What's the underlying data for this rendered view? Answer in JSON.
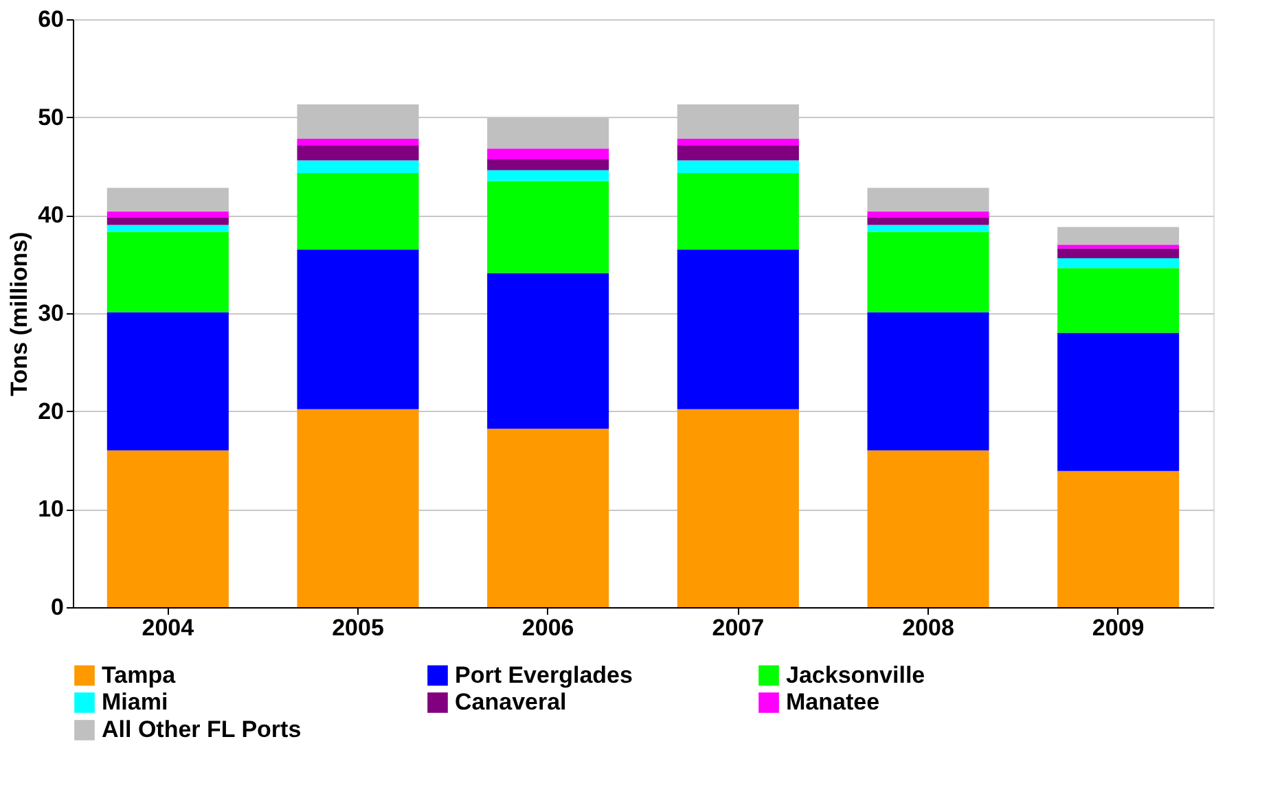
{
  "chart_data": {
    "type": "bar",
    "stacked": true,
    "ylabel": "Tons (millions)",
    "categories": [
      "2004",
      "2005",
      "2006",
      "2007",
      "2008",
      "2009"
    ],
    "ylim": [
      0,
      60
    ],
    "yticks": [
      0,
      10,
      20,
      30,
      40,
      50,
      60
    ],
    "grid": "y",
    "legend": "bottom",
    "series": [
      {
        "name": "Tampa",
        "color": "#ff9900",
        "values": [
          16.0,
          20.2,
          18.2,
          20.2,
          16.0,
          13.9
        ]
      },
      {
        "name": "Port Everglades",
        "color": "#0000ff",
        "values": [
          14.1,
          16.3,
          15.9,
          16.3,
          14.1,
          14.1
        ]
      },
      {
        "name": "Jacksonville",
        "color": "#00ff00",
        "values": [
          8.2,
          7.8,
          9.4,
          7.8,
          8.2,
          6.6
        ]
      },
      {
        "name": "Miami",
        "color": "#00ffff",
        "values": [
          0.7,
          1.3,
          1.1,
          1.3,
          0.7,
          1.0
        ]
      },
      {
        "name": "Canaveral",
        "color": "#800080",
        "values": [
          0.8,
          1.5,
          1.1,
          1.5,
          0.8,
          1.0
        ]
      },
      {
        "name": "Manatee",
        "color": "#ff00ff",
        "values": [
          0.6,
          0.7,
          1.1,
          0.7,
          0.6,
          0.4
        ]
      },
      {
        "name": "All Other FL Ports",
        "color": "#c0c0c0",
        "values": [
          2.4,
          3.5,
          3.1,
          3.5,
          2.4,
          1.8
        ]
      }
    ]
  }
}
